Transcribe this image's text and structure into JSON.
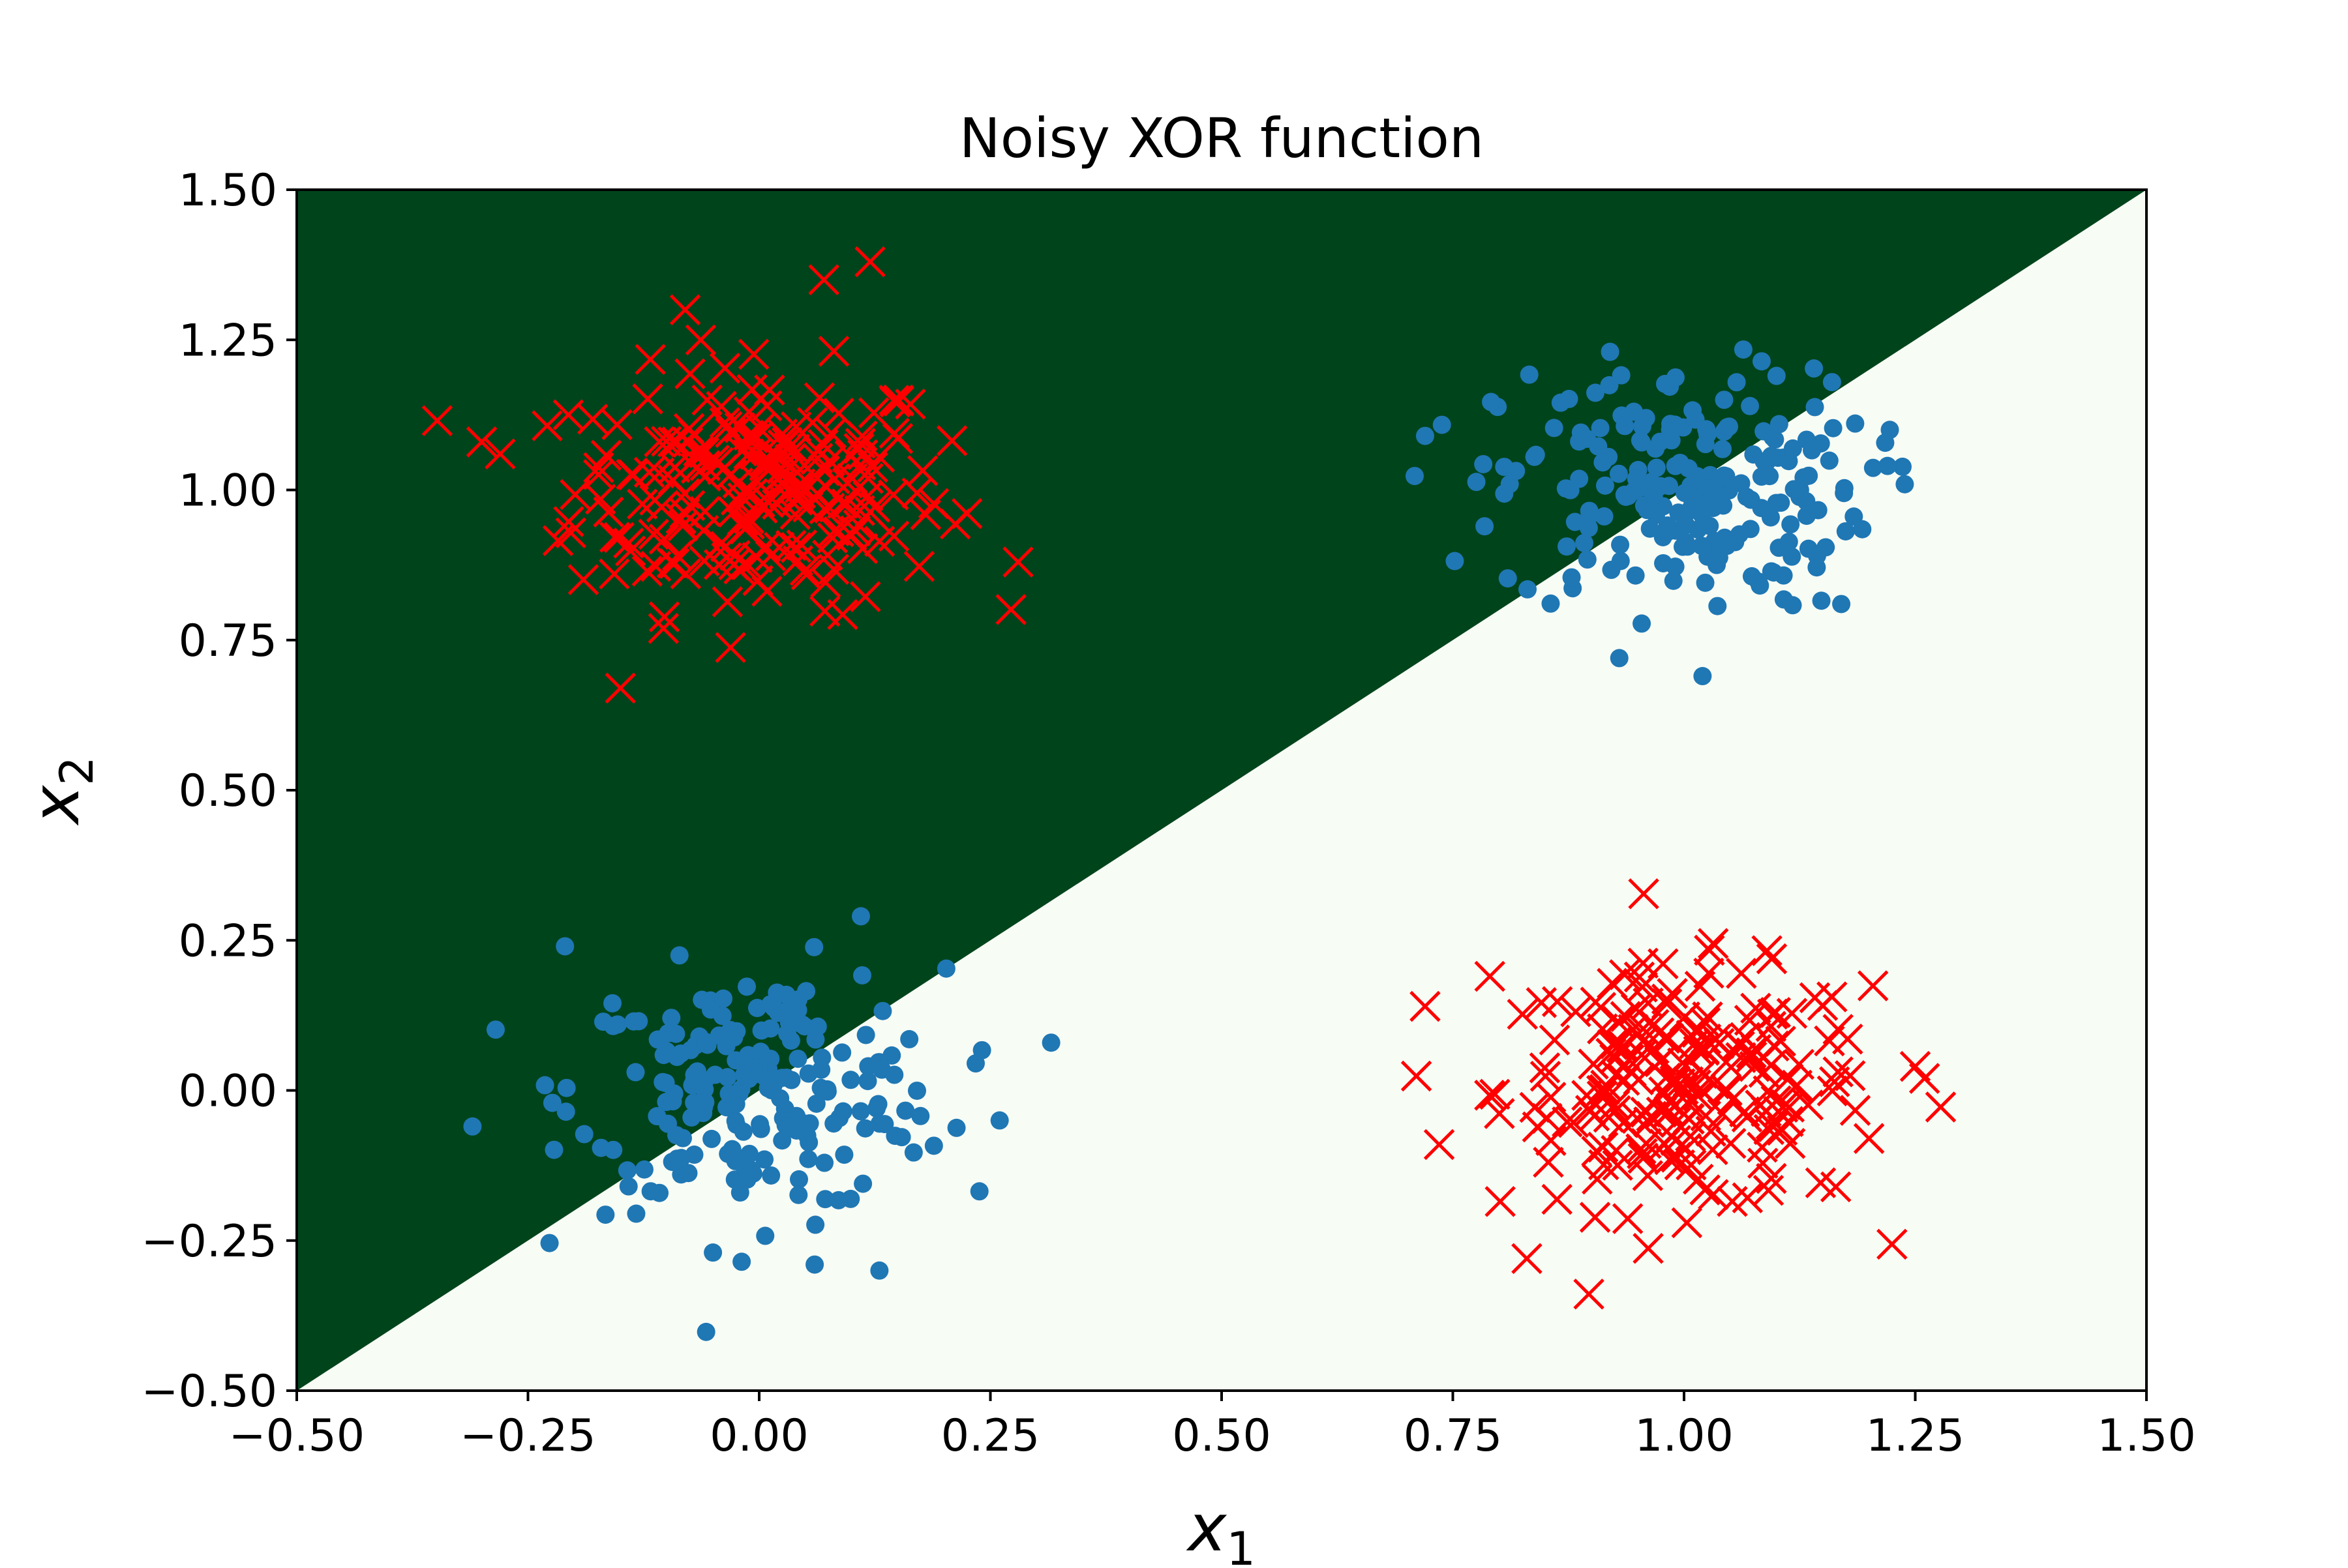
{
  "chart_data": {
    "type": "scatter",
    "title": "Noisy XOR function",
    "xlabel": "x",
    "xlabel_sub": "1",
    "ylabel": "x",
    "ylabel_sub": "2",
    "xlim": [
      -0.5,
      1.5
    ],
    "ylim": [
      -0.5,
      1.5
    ],
    "xticks": [
      -0.5,
      -0.25,
      0.0,
      0.25,
      0.5,
      0.75,
      1.0,
      1.25,
      1.5
    ],
    "xtick_labels": [
      "−0.50",
      "−0.25",
      "0.00",
      "0.25",
      "0.50",
      "0.75",
      "1.00",
      "1.25",
      "1.50"
    ],
    "yticks": [
      -0.5,
      -0.25,
      0.0,
      0.25,
      0.5,
      0.75,
      1.0,
      1.25,
      1.5
    ],
    "ytick_labels": [
      "−0.50",
      "−0.25",
      "0.00",
      "0.25",
      "0.50",
      "0.75",
      "1.00",
      "1.25",
      "1.50"
    ],
    "grid": false,
    "decision_regions": {
      "boundary_line": {
        "slope": 1.0,
        "intercept": 0.0
      },
      "above_color": "#00441b",
      "below_color": "#f7fcf5"
    },
    "series": [
      {
        "marker": "x",
        "color": "#ff0000",
        "clusters": [
          {
            "center": [
              0.0,
              1.0
            ],
            "spread": 0.1,
            "count": 220
          },
          {
            "center": [
              1.0,
              0.0
            ],
            "spread": 0.1,
            "count": 220
          }
        ],
        "outliers": [
          [
            -0.3,
            1.08
          ],
          [
            -0.28,
            1.06
          ],
          [
            0.28,
            0.88
          ],
          [
            -0.15,
            0.67
          ],
          [
            0.12,
            1.38
          ],
          [
            0.07,
            1.35
          ],
          [
            -0.08,
            1.3
          ],
          [
            0.72,
            0.14
          ],
          [
            0.83,
            -0.28
          ],
          [
            1.25,
            0.04
          ],
          [
            1.26,
            0.02
          ],
          [
            1.2,
            -0.08
          ],
          [
            0.79,
            0.19
          ]
        ]
      },
      {
        "marker": "o",
        "color": "#1f77b4",
        "clusters": [
          {
            "center": [
              0.0,
              0.0
            ],
            "spread": 0.1,
            "count": 220
          },
          {
            "center": [
              1.0,
              1.0
            ],
            "spread": 0.1,
            "count": 220
          }
        ],
        "outliers": [
          [
            -0.31,
            -0.06
          ],
          [
            -0.21,
            0.24
          ],
          [
            0.26,
            -0.05
          ],
          [
            0.11,
            0.29
          ],
          [
            0.06,
            -0.29
          ],
          [
            0.13,
            -0.3
          ],
          [
            -0.05,
            -0.27
          ],
          [
            0.72,
            1.09
          ],
          [
            1.22,
            1.04
          ],
          [
            1.02,
            0.69
          ],
          [
            0.93,
            0.72
          ],
          [
            0.92,
            1.23
          ],
          [
            1.1,
            1.19
          ],
          [
            1.17,
            0.81
          ]
        ]
      }
    ]
  }
}
